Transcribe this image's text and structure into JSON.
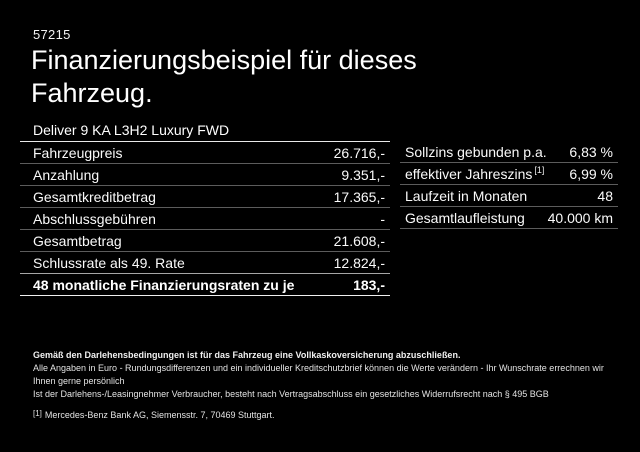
{
  "header": {
    "ref_number": "57215",
    "title_line1": "Finanzierungsbeispiel für dieses",
    "title_line2": "Fahrzeug.",
    "vehicle_name": "Deliver 9 KA L3H2 Luxury FWD"
  },
  "finance_table": {
    "rows": [
      {
        "label": "Fahrzeugpreis",
        "value": "26.716,-"
      },
      {
        "label": "Anzahlung",
        "value": "9.351,-"
      },
      {
        "label": "Gesamtkreditbetrag",
        "value": "17.365,-"
      },
      {
        "label": "Abschlussgebühren",
        "value": "-"
      },
      {
        "label": "Gesamtbetrag",
        "value": "21.608,-"
      },
      {
        "label": "Schlussrate als 49. Rate",
        "value": "12.824,-"
      }
    ],
    "highlight_row": {
      "label": "48 monatliche Finanzierungsraten zu je",
      "value": "183,-"
    }
  },
  "conditions_table": {
    "rows": [
      {
        "label": "Sollzins gebunden p.a.",
        "sup": "",
        "value": "6,83 %"
      },
      {
        "label": "effektiver Jahreszins",
        "sup": "[1]",
        "value": "6,99 %"
      },
      {
        "label": "Laufzeit in Monaten",
        "sup": "",
        "value": "48"
      },
      {
        "label": "Gesamtlaufleistung",
        "sup": "",
        "value": "40.000 km"
      }
    ]
  },
  "footnotes": {
    "insurance_note": "Gemäß den Darlehensbedingungen ist für das Fahrzeug eine Vollkaskoversicherung abzuschließen.",
    "rounding_note": "Alle Angaben in Euro - Rundungsdifferenzen und ein individueller Kreditschutzbrief können die Werte verändern - Ihr Wunschrate errechnen wir Ihnen gerne persönlich",
    "withdrawal_note": "Ist der Darlehens-/Leasingnehmer Verbraucher, besteht nach Vertragsabschluss ein gesetzliches Widerrufsrecht nach § 495 BGB",
    "bank_ref_marker": "[1]",
    "bank_note": "Mercedes-Benz Bank AG, Siemensstr. 7, 70469 Stuttgart."
  },
  "colors": {
    "background": "#000000",
    "text": "#ffffff",
    "divider": "#5c5c5c",
    "strong_divider": "#ececec"
  }
}
